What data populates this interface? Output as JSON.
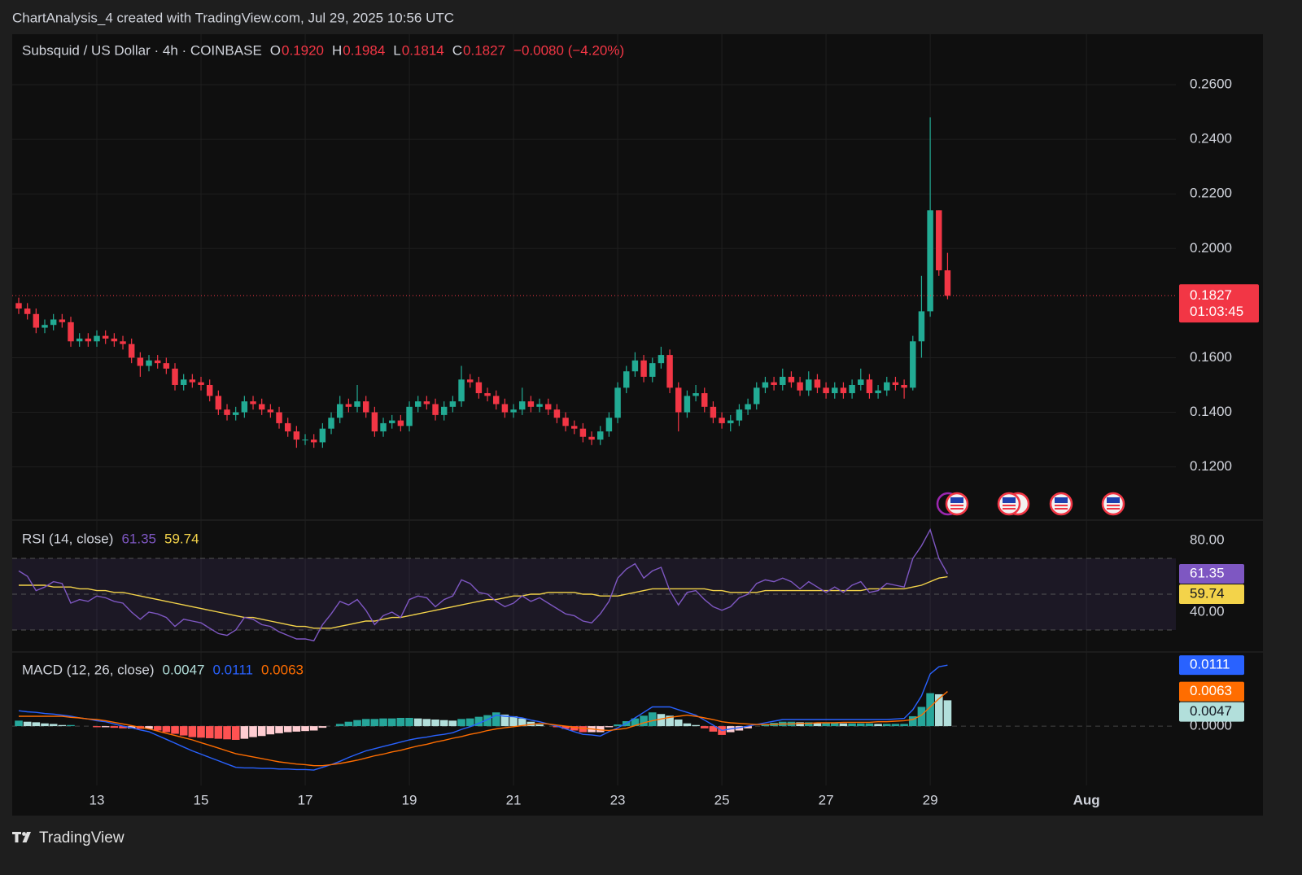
{
  "header": {
    "attribution": "ChartAnalysis_4 created with TradingView.com, Jul 29, 2025 10:56 UTC"
  },
  "footer": {
    "brand": "TradingView"
  },
  "chart_data": [
    {
      "type": "candlestick",
      "title": "Subsquid / US Dollar · 4h · COINBASE",
      "ohlc_legend": [
        {
          "key": "O",
          "value": "0.1920"
        },
        {
          "key": "H",
          "value": "0.1984"
        },
        {
          "key": "L",
          "value": "0.1814"
        },
        {
          "key": "C",
          "value": "0.1827"
        }
      ],
      "change": "−0.0080 (−4.20%)",
      "countdown": "01:03:45",
      "up_color": "#22ab94",
      "down_color": "#f23645",
      "grid": true,
      "xlim": [
        -0.75,
        133.3
      ],
      "xticks": [
        {
          "value": 9,
          "label": "13"
        },
        {
          "value": 21,
          "label": "15"
        },
        {
          "value": 33,
          "label": "17"
        },
        {
          "value": 45,
          "label": "19"
        },
        {
          "value": 57,
          "label": "21"
        },
        {
          "value": 69,
          "label": "23"
        },
        {
          "value": 81,
          "label": "25"
        },
        {
          "value": 93,
          "label": "27"
        },
        {
          "value": 105,
          "label": "29"
        },
        {
          "value": 123,
          "label": "Aug"
        }
      ],
      "ylim": [
        0.1008,
        0.2785
      ],
      "yticks": [
        {
          "value": 0.12,
          "label": "0.1200"
        },
        {
          "value": 0.14,
          "label": "0.1400"
        },
        {
          "value": 0.16,
          "label": "0.1600"
        },
        {
          "value": 0.2,
          "label": "0.2000"
        },
        {
          "value": 0.22,
          "label": "0.2200"
        },
        {
          "value": 0.24,
          "label": "0.2400"
        },
        {
          "value": 0.26,
          "label": "0.2600"
        }
      ],
      "open": [
        0.18,
        0.178,
        0.176,
        0.171,
        0.172,
        0.174,
        0.173,
        0.166,
        0.167,
        0.166,
        0.168,
        0.167,
        0.166,
        0.165,
        0.16,
        0.157,
        0.159,
        0.158,
        0.156,
        0.15,
        0.152,
        0.151,
        0.15,
        0.146,
        0.141,
        0.139,
        0.14,
        0.144,
        0.143,
        0.141,
        0.14,
        0.136,
        0.133,
        0.13,
        0.13,
        0.129,
        0.134,
        0.138,
        0.143,
        0.142,
        0.144,
        0.14,
        0.133,
        0.136,
        0.137,
        0.135,
        0.142,
        0.144,
        0.143,
        0.139,
        0.142,
        0.144,
        0.152,
        0.151,
        0.147,
        0.146,
        0.143,
        0.14,
        0.141,
        0.144,
        0.142,
        0.143,
        0.141,
        0.138,
        0.135,
        0.134,
        0.131,
        0.13,
        0.133,
        0.138,
        0.149,
        0.155,
        0.159,
        0.153,
        0.158,
        0.161,
        0.149,
        0.14,
        0.146,
        0.147,
        0.142,
        0.138,
        0.136,
        0.137,
        0.141,
        0.143,
        0.149,
        0.151,
        0.15,
        0.153,
        0.151,
        0.148,
        0.152,
        0.149,
        0.147,
        0.149,
        0.147,
        0.15,
        0.152,
        0.147,
        0.148,
        0.151,
        0.15,
        0.149,
        0.166,
        0.177,
        0.214,
        0.192
      ],
      "high": [
        0.182,
        0.18,
        0.178,
        0.174,
        0.176,
        0.176,
        0.175,
        0.169,
        0.169,
        0.17,
        0.17,
        0.169,
        0.168,
        0.167,
        0.162,
        0.161,
        0.161,
        0.16,
        0.158,
        0.154,
        0.154,
        0.153,
        0.152,
        0.148,
        0.143,
        0.142,
        0.146,
        0.146,
        0.145,
        0.143,
        0.142,
        0.138,
        0.135,
        0.132,
        0.132,
        0.136,
        0.14,
        0.146,
        0.145,
        0.15,
        0.146,
        0.142,
        0.138,
        0.139,
        0.139,
        0.144,
        0.146,
        0.146,
        0.145,
        0.144,
        0.146,
        0.157,
        0.154,
        0.153,
        0.149,
        0.148,
        0.145,
        0.143,
        0.149,
        0.146,
        0.145,
        0.145,
        0.143,
        0.14,
        0.137,
        0.136,
        0.133,
        0.135,
        0.14,
        0.151,
        0.157,
        0.162,
        0.161,
        0.16,
        0.164,
        0.163,
        0.151,
        0.148,
        0.15,
        0.149,
        0.144,
        0.14,
        0.139,
        0.143,
        0.145,
        0.151,
        0.153,
        0.153,
        0.156,
        0.155,
        0.153,
        0.155,
        0.154,
        0.151,
        0.151,
        0.151,
        0.152,
        0.156,
        0.154,
        0.15,
        0.153,
        0.153,
        0.152,
        0.168,
        0.19,
        0.248,
        0.214,
        0.1984
      ],
      "low": [
        0.176,
        0.174,
        0.169,
        0.169,
        0.17,
        0.171,
        0.164,
        0.164,
        0.164,
        0.164,
        0.165,
        0.164,
        0.163,
        0.158,
        0.153,
        0.155,
        0.156,
        0.154,
        0.148,
        0.148,
        0.149,
        0.148,
        0.144,
        0.139,
        0.137,
        0.137,
        0.138,
        0.141,
        0.139,
        0.138,
        0.134,
        0.131,
        0.127,
        0.128,
        0.127,
        0.127,
        0.132,
        0.136,
        0.14,
        0.14,
        0.138,
        0.131,
        0.131,
        0.134,
        0.133,
        0.133,
        0.14,
        0.141,
        0.137,
        0.137,
        0.14,
        0.142,
        0.149,
        0.145,
        0.144,
        0.141,
        0.138,
        0.138,
        0.139,
        0.14,
        0.14,
        0.139,
        0.136,
        0.133,
        0.132,
        0.129,
        0.128,
        0.128,
        0.131,
        0.136,
        0.147,
        0.153,
        0.151,
        0.151,
        0.156,
        0.147,
        0.133,
        0.138,
        0.144,
        0.14,
        0.136,
        0.134,
        0.133,
        0.135,
        0.139,
        0.141,
        0.147,
        0.148,
        0.148,
        0.149,
        0.146,
        0.146,
        0.147,
        0.145,
        0.145,
        0.145,
        0.145,
        0.148,
        0.145,
        0.145,
        0.146,
        0.148,
        0.145,
        0.148,
        0.16,
        0.175,
        0.19,
        0.1814
      ],
      "close": [
        0.178,
        0.176,
        0.171,
        0.172,
        0.174,
        0.173,
        0.166,
        0.167,
        0.166,
        0.168,
        0.167,
        0.166,
        0.165,
        0.16,
        0.157,
        0.159,
        0.158,
        0.156,
        0.15,
        0.152,
        0.151,
        0.15,
        0.146,
        0.141,
        0.139,
        0.14,
        0.144,
        0.143,
        0.141,
        0.14,
        0.136,
        0.133,
        0.13,
        0.13,
        0.129,
        0.134,
        0.138,
        0.143,
        0.142,
        0.144,
        0.14,
        0.133,
        0.136,
        0.137,
        0.135,
        0.142,
        0.144,
        0.143,
        0.139,
        0.142,
        0.144,
        0.152,
        0.151,
        0.147,
        0.146,
        0.143,
        0.14,
        0.141,
        0.144,
        0.142,
        0.143,
        0.141,
        0.138,
        0.135,
        0.134,
        0.131,
        0.13,
        0.133,
        0.138,
        0.149,
        0.155,
        0.159,
        0.153,
        0.158,
        0.161,
        0.149,
        0.14,
        0.146,
        0.147,
        0.142,
        0.138,
        0.136,
        0.137,
        0.141,
        0.143,
        0.149,
        0.151,
        0.15,
        0.153,
        0.151,
        0.148,
        0.152,
        0.149,
        0.147,
        0.149,
        0.147,
        0.15,
        0.152,
        0.147,
        0.148,
        0.151,
        0.15,
        0.149,
        0.166,
        0.177,
        0.214,
        0.192,
        0.1827
      ]
    },
    {
      "type": "rsi",
      "title": "RSI (14, close)",
      "ylim": [
        18.2,
        90.9
      ],
      "yticks": [
        {
          "value": 40,
          "label": "40.00"
        },
        {
          "value": 80,
          "label": "80.00"
        }
      ],
      "hlines": [
        70,
        50,
        30
      ],
      "band_color": "#7e57c2",
      "series": [
        {
          "color": "#7e57c2",
          "values": [
            63,
            60,
            52,
            54,
            57,
            56,
            45,
            47,
            46,
            49,
            48,
            46,
            45,
            40,
            36,
            40,
            39,
            37,
            32,
            36,
            35,
            34,
            31,
            28,
            27,
            30,
            37,
            36,
            33,
            32,
            29,
            27,
            25,
            25,
            24,
            33,
            39,
            46,
            44,
            47,
            41,
            33,
            38,
            40,
            37,
            47,
            49,
            48,
            43,
            47,
            49,
            58,
            56,
            51,
            50,
            46,
            43,
            45,
            49,
            46,
            48,
            45,
            42,
            39,
            38,
            35,
            34,
            39,
            46,
            59,
            64,
            67,
            59,
            63,
            65,
            52,
            44,
            51,
            52,
            47,
            43,
            41,
            43,
            48,
            50,
            56,
            58,
            57,
            59,
            57,
            53,
            57,
            54,
            51,
            54,
            51,
            55,
            57,
            51,
            52,
            56,
            55,
            54,
            70,
            77,
            86,
            70,
            61.35
          ]
        },
        {
          "color": "#f3d34a",
          "values": [
            55,
            55,
            55,
            55,
            54,
            54,
            54,
            53,
            53,
            52,
            52,
            51,
            51,
            50,
            49,
            48,
            47,
            46,
            45,
            44,
            43,
            42,
            41,
            40,
            39,
            38,
            37,
            37,
            36,
            35,
            34,
            33,
            32,
            32,
            31,
            31,
            31,
            32,
            33,
            34,
            35,
            35,
            36,
            37,
            37,
            38,
            39,
            40,
            41,
            42,
            43,
            44,
            45,
            46,
            47,
            47,
            48,
            49,
            49,
            50,
            50,
            51,
            51,
            51,
            51,
            50,
            50,
            49,
            49,
            49,
            50,
            51,
            52,
            53,
            53,
            53,
            53,
            53,
            53,
            53,
            52,
            52,
            51,
            51,
            51,
            51,
            52,
            52,
            52,
            52,
            52,
            52,
            52,
            52,
            52,
            52,
            52,
            52,
            53,
            53,
            53,
            53,
            53,
            54,
            55,
            57,
            59,
            59.74
          ]
        }
      ]
    },
    {
      "type": "macd",
      "title": "MACD (12, 26, close)",
      "ylim": [
        -0.0108,
        0.0132
      ],
      "yticks": [
        {
          "value": 0,
          "label": "0.0000"
        }
      ],
      "histogram": {
        "colors": [
          "#26a69a",
          "#b2dfdb",
          "#ffcdd2",
          "#ff5252"
        ],
        "values": [
          0.001,
          0.0008,
          0.0007,
          0.0005,
          0.0004,
          0.0002,
          0.0002,
          0,
          0,
          -0.0002,
          -0.0002,
          -0.0003,
          -0.0004,
          -0.0004,
          -0.0005,
          -0.0005,
          -0.0008,
          -0.0011,
          -0.0014,
          -0.0017,
          -0.002,
          -0.0021,
          -0.0022,
          -0.0023,
          -0.0024,
          -0.0025,
          -0.0023,
          -0.002,
          -0.0018,
          -0.0015,
          -0.0013,
          -0.0011,
          -0.001,
          -0.0009,
          -0.0008,
          -0.0003,
          0,
          0.0004,
          0.0008,
          0.0011,
          0.0013,
          0.0013,
          0.0014,
          0.0014,
          0.0015,
          0.0015,
          0.0014,
          0.0013,
          0.0012,
          0.0011,
          0.001,
          0.0013,
          0.0014,
          0.0017,
          0.002,
          0.0025,
          0.0021,
          0.0018,
          0.0014,
          0.0008,
          0.0003,
          0,
          -0.0002,
          -0.0005,
          -0.0008,
          -0.0011,
          -0.0011,
          -0.0011,
          -0.0002,
          0.0003,
          0.0009,
          0.0014,
          0.0019,
          0.0025,
          0.0022,
          0.0019,
          0.0012,
          0.0005,
          0.0002,
          -0.0004,
          -0.001,
          -0.0016,
          -0.0011,
          -0.0008,
          -0.0004,
          0,
          0.0003,
          0.0006,
          0.0008,
          0.0008,
          0.0007,
          0.0007,
          0.0006,
          0.0006,
          0.0006,
          0.0005,
          0.0005,
          0.0005,
          0.0005,
          0.0004,
          0.0004,
          0.0004,
          0.0004,
          0.0018,
          0.0035,
          0.006,
          0.0058,
          0.0047
        ]
      },
      "series": [
        {
          "color": "#2962ff",
          "values": [
            0.0028,
            0.0026,
            0.0025,
            0.0023,
            0.0022,
            0.002,
            0.0018,
            0.0015,
            0.0013,
            0.001,
            0.0008,
            0.0004,
            0,
            -0.0003,
            -0.0007,
            -0.001,
            -0.0017,
            -0.0024,
            -0.0031,
            -0.0038,
            -0.0045,
            -0.0051,
            -0.0057,
            -0.0063,
            -0.0069,
            -0.0075,
            -0.0076,
            -0.0076,
            -0.0077,
            -0.0077,
            -0.0078,
            -0.0078,
            -0.0079,
            -0.0079,
            -0.008,
            -0.0075,
            -0.007,
            -0.0064,
            -0.0057,
            -0.0051,
            -0.0045,
            -0.0041,
            -0.0037,
            -0.0033,
            -0.0029,
            -0.0025,
            -0.0022,
            -0.002,
            -0.0017,
            -0.0015,
            -0.0012,
            -0.0006,
            -0.0001,
            0.0005,
            0.0012,
            0.002,
            0.0018,
            0.0017,
            0.0015,
            0.0011,
            0.0008,
            0.0004,
            0,
            -0.0005,
            -0.001,
            -0.0015,
            -0.0016,
            -0.0018,
            -0.001,
            -0.0003,
            0.0005,
            0.0015,
            0.0025,
            0.0035,
            0.0035,
            0.0035,
            0.003,
            0.0025,
            0.002,
            0.0011,
            0.0002,
            -0.0008,
            -0.0005,
            -0.0003,
            0,
            0.0003,
            0.0006,
            0.0009,
            0.0012,
            0.0012,
            0.0012,
            0.0012,
            0.0012,
            0.0012,
            0.0012,
            0.0012,
            0.0012,
            0.0012,
            0.0012,
            0.0012,
            0.0012,
            0.0013,
            0.0014,
            0.003,
            0.0055,
            0.0095,
            0.0108,
            0.0111
          ]
        },
        {
          "color": "#ff6d00",
          "values": [
            0.0018,
            0.0018,
            0.0018,
            0.0018,
            0.0018,
            0.0018,
            0.0016,
            0.0015,
            0.0013,
            0.0012,
            0.001,
            0.0007,
            0.0004,
            0.0001,
            -0.0002,
            -0.0005,
            -0.0009,
            -0.0013,
            -0.0017,
            -0.0021,
            -0.0025,
            -0.003,
            -0.0035,
            -0.004,
            -0.0045,
            -0.005,
            -0.0053,
            -0.0056,
            -0.0059,
            -0.0062,
            -0.0065,
            -0.0067,
            -0.0069,
            -0.007,
            -0.0072,
            -0.0072,
            -0.007,
            -0.0068,
            -0.0065,
            -0.0062,
            -0.0058,
            -0.0054,
            -0.0051,
            -0.0047,
            -0.0044,
            -0.004,
            -0.0036,
            -0.0033,
            -0.0029,
            -0.0026,
            -0.0022,
            -0.0019,
            -0.0015,
            -0.0012,
            -0.0008,
            -0.0005,
            -0.0003,
            -0.0001,
            0.0001,
            0.0003,
            0.0005,
            0.0004,
            0.0002,
            0,
            -0.0002,
            -0.0004,
            -0.0005,
            -0.0007,
            -0.0008,
            -0.0006,
            -0.0004,
            0.0001,
            0.0006,
            0.001,
            0.0013,
            0.0016,
            0.0018,
            0.002,
            0.0018,
            0.0015,
            0.0012,
            0.0008,
            0.0006,
            0.0005,
            0.0004,
            0.0003,
            0.0003,
            0.0003,
            0.0004,
            0.0004,
            0.0005,
            0.0005,
            0.0006,
            0.0006,
            0.0006,
            0.0007,
            0.0007,
            0.0007,
            0.0007,
            0.0008,
            0.0008,
            0.0009,
            0.001,
            0.0012,
            0.002,
            0.0035,
            0.005,
            0.0063
          ]
        }
      ]
    }
  ]
}
